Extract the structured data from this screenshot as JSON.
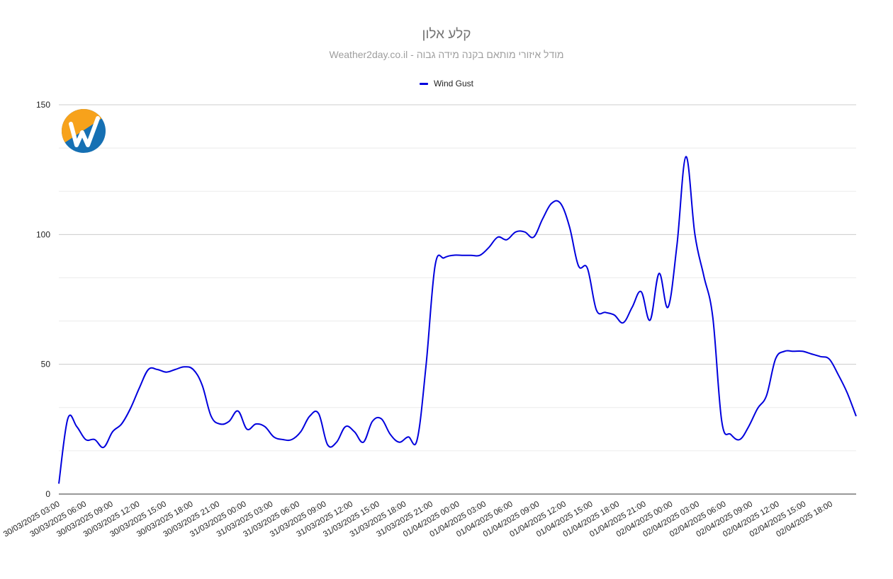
{
  "chart_data": {
    "type": "line",
    "title": "קלע אלון",
    "subtitle": "Weather2day.co.il - מודל איזורי מותאם בקנה מידה גבוה",
    "legend_position": "top",
    "grid": true,
    "ylim": [
      0,
      150
    ],
    "yticks": [
      0,
      50,
      100,
      150
    ],
    "xtick_labels": [
      "30/03/2025 03:00",
      "30/03/2025 06:00",
      "30/03/2025 09:00",
      "30/03/2025 12:00",
      "30/03/2025 15:00",
      "30/03/2025 18:00",
      "30/03/2025 21:00",
      "31/03/2025 00:00",
      "31/03/2025 03:00",
      "31/03/2025 06:00",
      "31/03/2025 09:00",
      "31/03/2025 12:00",
      "31/03/2025 15:00",
      "31/03/2025 18:00",
      "31/03/2025 21:00",
      "01/04/2025 00:00",
      "01/04/2025 03:00",
      "01/04/2025 06:00",
      "01/04/2025 09:00",
      "01/04/2025 12:00",
      "01/04/2025 15:00",
      "01/04/2025 18:00",
      "01/04/2025 21:00",
      "02/04/2025 00:00",
      "02/04/2025 03:00",
      "02/04/2025 06:00",
      "02/04/2025 09:00",
      "02/04/2025 12:00",
      "02/04/2025 15:00",
      "02/04/2025 18:00"
    ],
    "series": [
      {
        "name": "Wind Gust",
        "color": "#0000dd",
        "values": [
          4,
          29,
          26,
          21,
          21,
          18,
          24,
          27,
          33,
          41,
          48,
          48,
          47,
          48,
          49,
          48,
          42,
          30,
          27,
          28,
          32,
          25,
          27,
          26,
          22,
          21,
          21,
          24,
          30,
          31,
          19,
          20,
          26,
          24,
          20,
          28,
          29,
          23,
          20,
          22,
          21,
          50,
          88,
          91,
          92,
          92,
          92,
          92,
          95,
          99,
          98,
          101,
          101,
          99,
          106,
          112,
          112,
          103,
          88,
          87,
          71,
          70,
          69,
          66,
          72,
          78,
          67,
          85,
          72,
          96,
          130,
          100,
          84,
          68,
          28,
          23,
          21,
          26,
          33,
          38,
          52,
          55,
          55,
          55,
          54,
          53,
          52,
          46,
          39,
          30
        ]
      }
    ]
  }
}
